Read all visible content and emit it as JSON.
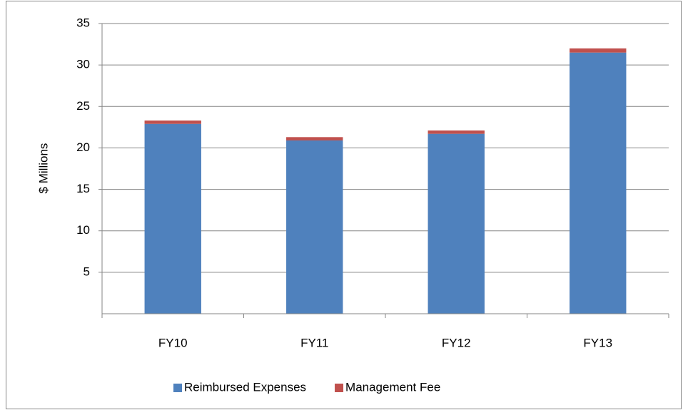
{
  "chart_data": {
    "type": "stacked_bar",
    "y_label": "$ Millions",
    "categories": [
      "FY10",
      "FY11",
      "FY12",
      "FY13"
    ],
    "series": [
      {
        "name": "Reimbursed Expenses",
        "color": "#4f81bd",
        "values": [
          22.9,
          20.9,
          21.7,
          31.5
        ]
      },
      {
        "name": "Management Fee",
        "color": "#c0504d",
        "values": [
          0.4,
          0.4,
          0.4,
          0.5
        ]
      }
    ],
    "ylim": [
      0,
      35
    ],
    "yticks": [
      5,
      10,
      15,
      20,
      25,
      30,
      35
    ],
    "grid": true,
    "legend": "bottom"
  }
}
